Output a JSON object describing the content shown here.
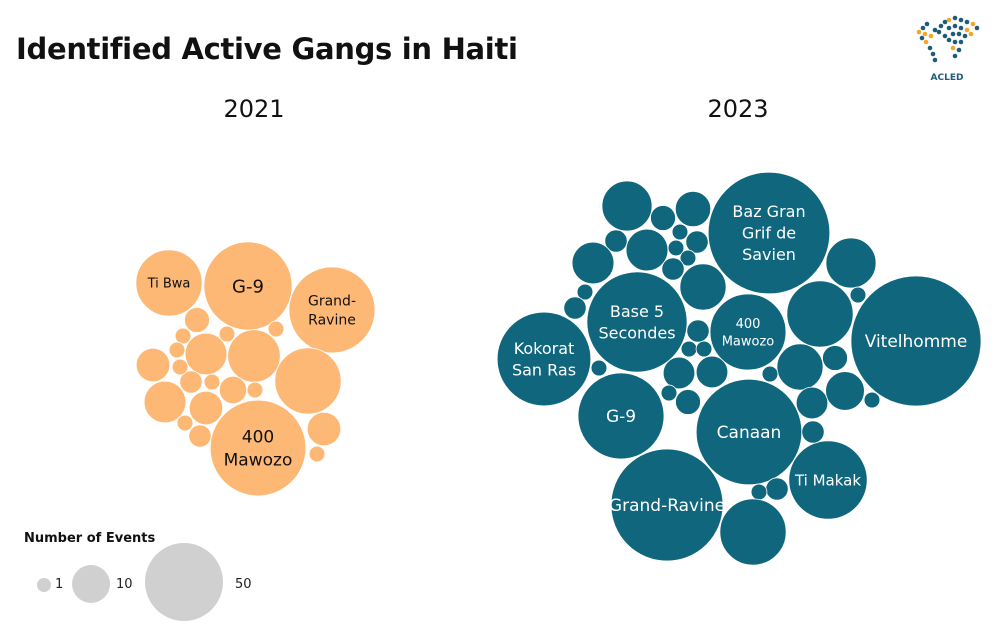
{
  "title": "Identified Active Gangs in Haiti",
  "logo_text": "ACLED",
  "colors": {
    "2021": "#FDB876",
    "2023": "#10667C",
    "legend": "#D0D0D0"
  },
  "chart_data": [
    {
      "type": "packed-bubble",
      "title": "2021",
      "bubbles": [
        {
          "label": "Ti Bwa",
          "value": 35
        },
        {
          "label": "G-9",
          "value": 62
        },
        {
          "label": "Grand-Ravine",
          "value": 59
        },
        {
          "label": "400 Mawozo",
          "value": 73
        },
        {
          "label": "",
          "value": 35
        },
        {
          "label": "",
          "value": 22
        },
        {
          "label": "",
          "value": 14
        },
        {
          "label": "",
          "value": 5
        },
        {
          "label": "",
          "value": 9
        },
        {
          "label": "",
          "value": 14
        },
        {
          "label": "",
          "value": 9
        },
        {
          "label": "",
          "value": 9
        },
        {
          "label": "",
          "value": 6
        },
        {
          "label": "",
          "value": 4
        },
        {
          "label": "",
          "value": 2
        },
        {
          "label": "",
          "value": 2
        },
        {
          "label": "",
          "value": 2
        },
        {
          "label": "",
          "value": 2
        },
        {
          "label": "",
          "value": 2
        },
        {
          "label": "",
          "value": 2
        },
        {
          "label": "",
          "value": 2
        },
        {
          "label": "",
          "value": 2
        },
        {
          "label": "",
          "value": 4
        },
        {
          "label": "",
          "value": 2
        }
      ]
    },
    {
      "type": "packed-bubble",
      "title": "2023",
      "bubbles": [
        {
          "label": "Baz Gran Grif de Savien",
          "value": 118
        },
        {
          "label": "Vitelhomme",
          "value": 135
        },
        {
          "label": "Base 5 Secondes",
          "value": 80
        },
        {
          "label": "Kokorat San Ras",
          "value": 70
        },
        {
          "label": "G-9",
          "value": 59
        },
        {
          "label": "Canaan",
          "value": 89
        },
        {
          "label": "Grand-Ravine",
          "value": 100
        },
        {
          "label": "Ti Makak",
          "value": 49
        },
        {
          "label": "400 Mawozo",
          "value": 46
        },
        {
          "label": "",
          "value": 35
        },
        {
          "label": "",
          "value": 20
        },
        {
          "label": "",
          "value": 10
        },
        {
          "label": "",
          "value": 5
        },
        {
          "label": "",
          "value": 14
        },
        {
          "label": "",
          "value": 4
        },
        {
          "label": "",
          "value": 14
        },
        {
          "label": "",
          "value": 2
        },
        {
          "label": "",
          "value": 4
        },
        {
          "label": "",
          "value": 2
        },
        {
          "label": "",
          "value": 2
        },
        {
          "label": "",
          "value": 4
        },
        {
          "label": "",
          "value": 17
        },
        {
          "label": "",
          "value": 20
        },
        {
          "label": "",
          "value": 2
        },
        {
          "label": "",
          "value": 2
        },
        {
          "label": "",
          "value": 4
        },
        {
          "label": "",
          "value": 4
        },
        {
          "label": "",
          "value": 2
        },
        {
          "label": "",
          "value": 2
        },
        {
          "label": "",
          "value": 2
        },
        {
          "label": "",
          "value": 8
        },
        {
          "label": "",
          "value": 8
        },
        {
          "label": "",
          "value": 17
        },
        {
          "label": "",
          "value": 5
        },
        {
          "label": "",
          "value": 2
        },
        {
          "label": "",
          "value": 12
        },
        {
          "label": "",
          "value": 2
        },
        {
          "label": "",
          "value": 8
        },
        {
          "label": "",
          "value": 2
        },
        {
          "label": "",
          "value": 5
        },
        {
          "label": "",
          "value": 4
        },
        {
          "label": "",
          "value": 4
        },
        {
          "label": "",
          "value": 2
        },
        {
          "label": "",
          "value": 35
        }
      ]
    }
  ],
  "legend": {
    "title": "Number of Events",
    "entries": [
      {
        "label": "1",
        "value": 1
      },
      {
        "label": "10",
        "value": 10
      },
      {
        "label": "50",
        "value": 50
      }
    ]
  }
}
